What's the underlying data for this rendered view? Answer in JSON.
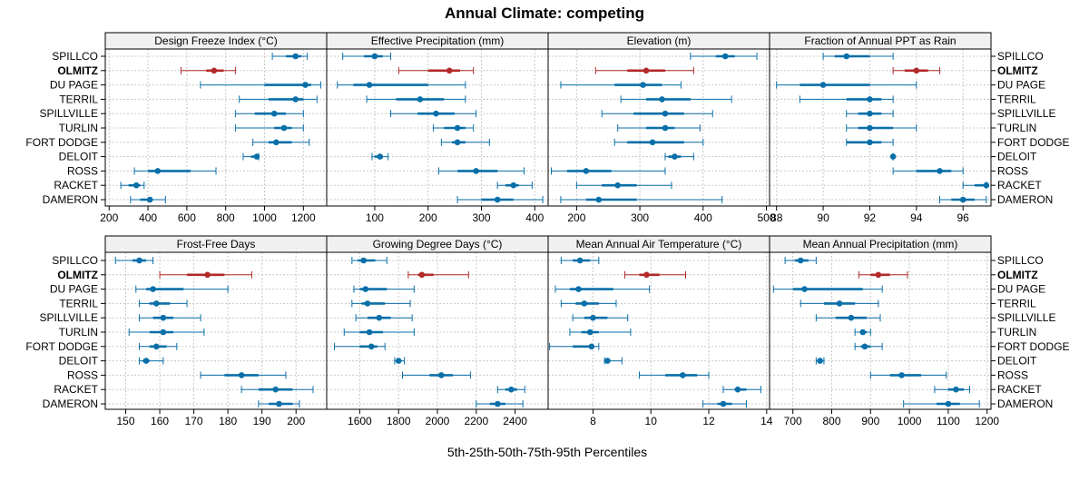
{
  "title": "Annual Climate: competing",
  "xlabel": "5th-25th-50th-75th-95th Percentiles",
  "rows": [
    "SPILLCO",
    "OLMITZ",
    "DU PAGE",
    "TERRIL",
    "SPILLVILLE",
    "TURLIN",
    "FORT DODGE",
    "DELOIT",
    "ROSS",
    "RACKET",
    "DAMERON"
  ],
  "highlight": "OLMITZ",
  "colors": {
    "normal": "#0a6fa8",
    "highlight": "#b22a2a",
    "grid": "#c8c8c8",
    "strip": "#f0f0f0",
    "frame": "#000000"
  },
  "chart_data": [
    {
      "type": "percentile-dotplot",
      "title": "Design Freeze Index (°C)",
      "xlim": [
        180,
        1320
      ],
      "ticks": [
        200,
        400,
        600,
        800,
        1000,
        1200
      ],
      "tick_labels": [
        "200",
        "400",
        "600",
        "800",
        "1000",
        "1200"
      ],
      "series": [
        {
          "name": "SPILLCO",
          "p5": 1040,
          "p25": 1110,
          "p50": 1160,
          "p75": 1190,
          "p95": 1220
        },
        {
          "name": "OLMITZ",
          "p5": 570,
          "p25": 700,
          "p50": 740,
          "p75": 790,
          "p95": 850
        },
        {
          "name": "DU PAGE",
          "p5": 670,
          "p25": 1000,
          "p50": 1210,
          "p75": 1240,
          "p95": 1290
        },
        {
          "name": "TERRIL",
          "p5": 870,
          "p25": 1020,
          "p50": 1160,
          "p75": 1200,
          "p95": 1270
        },
        {
          "name": "SPILLVILLE",
          "p5": 850,
          "p25": 950,
          "p50": 1050,
          "p75": 1110,
          "p95": 1200
        },
        {
          "name": "TURLIN",
          "p5": 850,
          "p25": 1050,
          "p50": 1100,
          "p75": 1140,
          "p95": 1200
        },
        {
          "name": "FORT DODGE",
          "p5": 940,
          "p25": 1020,
          "p50": 1060,
          "p75": 1140,
          "p95": 1230
        },
        {
          "name": "DELOIT",
          "p5": 890,
          "p25": 930,
          "p50": 960,
          "p75": 965,
          "p95": 970
        },
        {
          "name": "ROSS",
          "p5": 330,
          "p25": 400,
          "p50": 450,
          "p75": 620,
          "p95": 750
        },
        {
          "name": "RACKET",
          "p5": 260,
          "p25": 300,
          "p50": 340,
          "p75": 360,
          "p95": 380
        },
        {
          "name": "DAMERON",
          "p5": 310,
          "p25": 360,
          "p50": 410,
          "p75": 420,
          "p95": 490
        }
      ]
    },
    {
      "type": "percentile-dotplot",
      "title": "Effective Precipitation (mm)",
      "xlim": [
        10,
        425
      ],
      "ticks": [
        100,
        200,
        300,
        400
      ],
      "tick_labels": [
        "100",
        "200",
        "300",
        "400"
      ],
      "series": [
        {
          "name": "SPILLCO",
          "p5": 40,
          "p25": 80,
          "p50": 100,
          "p75": 115,
          "p95": 130
        },
        {
          "name": "OLMITZ",
          "p5": 145,
          "p25": 200,
          "p50": 240,
          "p75": 260,
          "p95": 285
        },
        {
          "name": "DU PAGE",
          "p5": 30,
          "p25": 60,
          "p50": 90,
          "p75": 200,
          "p95": 270
        },
        {
          "name": "TERRIL",
          "p5": 85,
          "p25": 140,
          "p50": 185,
          "p75": 230,
          "p95": 270
        },
        {
          "name": "SPILLVILLE",
          "p5": 130,
          "p25": 180,
          "p50": 215,
          "p75": 250,
          "p95": 290
        },
        {
          "name": "TURLIN",
          "p5": 210,
          "p25": 230,
          "p50": 255,
          "p75": 270,
          "p95": 285
        },
        {
          "name": "FORT DODGE",
          "p5": 225,
          "p25": 245,
          "p50": 255,
          "p75": 270,
          "p95": 315
        },
        {
          "name": "DELOIT",
          "p5": 95,
          "p25": 100,
          "p50": 110,
          "p75": 115,
          "p95": 125
        },
        {
          "name": "ROSS",
          "p5": 220,
          "p25": 255,
          "p50": 290,
          "p75": 330,
          "p95": 380
        },
        {
          "name": "RACKET",
          "p5": 330,
          "p25": 345,
          "p50": 360,
          "p75": 370,
          "p95": 395
        },
        {
          "name": "DAMERON",
          "p5": 255,
          "p25": 300,
          "p50": 330,
          "p75": 360,
          "p95": 415
        }
      ]
    },
    {
      "type": "percentile-dotplot",
      "title": "Elevation (m)",
      "xlim": [
        155,
        505
      ],
      "ticks": [
        200,
        300,
        400,
        500
      ],
      "tick_labels": [
        "200",
        "300",
        "400",
        "500"
      ],
      "series": [
        {
          "name": "SPILLCO",
          "p5": 380,
          "p25": 420,
          "p50": 435,
          "p75": 450,
          "p95": 485
        },
        {
          "name": "OLMITZ",
          "p5": 230,
          "p25": 280,
          "p50": 310,
          "p75": 340,
          "p95": 385
        },
        {
          "name": "DU PAGE",
          "p5": 175,
          "p25": 260,
          "p50": 305,
          "p75": 335,
          "p95": 365
        },
        {
          "name": "TERRIL",
          "p5": 270,
          "p25": 310,
          "p50": 335,
          "p75": 380,
          "p95": 445
        },
        {
          "name": "SPILLVILLE",
          "p5": 240,
          "p25": 290,
          "p50": 340,
          "p75": 370,
          "p95": 415
        },
        {
          "name": "TURLIN",
          "p5": 265,
          "p25": 310,
          "p50": 340,
          "p75": 355,
          "p95": 395
        },
        {
          "name": "FORT DODGE",
          "p5": 260,
          "p25": 280,
          "p50": 320,
          "p75": 370,
          "p95": 400
        },
        {
          "name": "DELOIT",
          "p5": 340,
          "p25": 345,
          "p50": 355,
          "p75": 365,
          "p95": 385
        },
        {
          "name": "ROSS",
          "p5": 160,
          "p25": 185,
          "p50": 215,
          "p75": 255,
          "p95": 340
        },
        {
          "name": "RACKET",
          "p5": 200,
          "p25": 240,
          "p50": 265,
          "p75": 295,
          "p95": 350
        },
        {
          "name": "DAMERON",
          "p5": 175,
          "p25": 215,
          "p50": 235,
          "p75": 295,
          "p95": 430
        }
      ]
    },
    {
      "type": "percentile-dotplot",
      "title": "Fraction of Annual PPT as Rain",
      "xlim": [
        87.7,
        97.2
      ],
      "ticks": [
        88,
        90,
        92,
        94,
        96
      ],
      "tick_labels": [
        "88",
        "90",
        "92",
        "94",
        "96"
      ],
      "series": [
        {
          "name": "SPILLCO",
          "p5": 90,
          "p25": 90.5,
          "p50": 91,
          "p75": 92,
          "p95": 93
        },
        {
          "name": "OLMITZ",
          "p5": 93,
          "p25": 93.5,
          "p50": 94,
          "p75": 94.5,
          "p95": 95
        },
        {
          "name": "DU PAGE",
          "p5": 88,
          "p25": 89,
          "p50": 90,
          "p75": 92,
          "p95": 94
        },
        {
          "name": "TERRIL",
          "p5": 89,
          "p25": 91,
          "p50": 92,
          "p75": 92.5,
          "p95": 93
        },
        {
          "name": "SPILLVILLE",
          "p5": 91,
          "p25": 91.5,
          "p50": 92,
          "p75": 92.5,
          "p95": 93
        },
        {
          "name": "TURLIN",
          "p5": 91,
          "p25": 91.5,
          "p50": 92,
          "p75": 93,
          "p95": 94
        },
        {
          "name": "FORT DODGE",
          "p5": 91,
          "p25": 91,
          "p50": 92,
          "p75": 92.5,
          "p95": 93
        },
        {
          "name": "DELOIT",
          "p5": 93,
          "p25": 93,
          "p50": 93,
          "p75": 93,
          "p95": 93
        },
        {
          "name": "ROSS",
          "p5": 93,
          "p25": 94,
          "p50": 95,
          "p75": 95.5,
          "p95": 96
        },
        {
          "name": "RACKET",
          "p5": 96,
          "p25": 96.5,
          "p50": 97,
          "p75": 97,
          "p95": 97
        },
        {
          "name": "DAMERON",
          "p5": 95,
          "p25": 95.5,
          "p50": 96,
          "p75": 96.5,
          "p95": 97
        }
      ]
    },
    {
      "type": "percentile-dotplot",
      "title": "Frost-Free Days",
      "xlim": [
        144,
        209
      ],
      "ticks": [
        150,
        160,
        170,
        180,
        190,
        200
      ],
      "tick_labels": [
        "150",
        "160",
        "170",
        "180",
        "190",
        "200"
      ],
      "series": [
        {
          "name": "SPILLCO",
          "p5": 147,
          "p25": 152,
          "p50": 154,
          "p75": 156,
          "p95": 158
        },
        {
          "name": "OLMITZ",
          "p5": 160,
          "p25": 168,
          "p50": 174,
          "p75": 179,
          "p95": 187
        },
        {
          "name": "DU PAGE",
          "p5": 153,
          "p25": 156,
          "p50": 158,
          "p75": 167,
          "p95": 180
        },
        {
          "name": "TERRIL",
          "p5": 154,
          "p25": 157,
          "p50": 159,
          "p75": 163,
          "p95": 168
        },
        {
          "name": "SPILLVILLE",
          "p5": 154,
          "p25": 158,
          "p50": 161,
          "p75": 164,
          "p95": 172
        },
        {
          "name": "TURLIN",
          "p5": 151,
          "p25": 157,
          "p50": 161,
          "p75": 164,
          "p95": 173
        },
        {
          "name": "FORT DODGE",
          "p5": 154,
          "p25": 157,
          "p50": 159,
          "p75": 162,
          "p95": 165
        },
        {
          "name": "DELOIT",
          "p5": 154,
          "p25": 155,
          "p50": 156,
          "p75": 157,
          "p95": 161
        },
        {
          "name": "ROSS",
          "p5": 172,
          "p25": 179,
          "p50": 184,
          "p75": 189,
          "p95": 197
        },
        {
          "name": "RACKET",
          "p5": 184,
          "p25": 189,
          "p50": 194,
          "p75": 199,
          "p95": 205
        },
        {
          "name": "DAMERON",
          "p5": 189,
          "p25": 192,
          "p50": 195,
          "p75": 199,
          "p95": 201
        }
      ]
    },
    {
      "type": "percentile-dotplot",
      "title": "Growing Degree Days (°C)",
      "xlim": [
        1430,
        2570
      ],
      "ticks": [
        1600,
        1800,
        2000,
        2200,
        2400
      ],
      "tick_labels": [
        "1600",
        "1800",
        "2000",
        "2200",
        "2400"
      ],
      "series": [
        {
          "name": "SPILLCO",
          "p5": 1560,
          "p25": 1590,
          "p50": 1620,
          "p75": 1680,
          "p95": 1740
        },
        {
          "name": "OLMITZ",
          "p5": 1850,
          "p25": 1900,
          "p50": 1920,
          "p75": 1980,
          "p95": 2160
        },
        {
          "name": "DU PAGE",
          "p5": 1570,
          "p25": 1600,
          "p50": 1630,
          "p75": 1740,
          "p95": 1880
        },
        {
          "name": "TERRIL",
          "p5": 1560,
          "p25": 1610,
          "p50": 1640,
          "p75": 1730,
          "p95": 1860
        },
        {
          "name": "SPILLVILLE",
          "p5": 1580,
          "p25": 1640,
          "p50": 1700,
          "p75": 1760,
          "p95": 1870
        },
        {
          "name": "TURLIN",
          "p5": 1520,
          "p25": 1600,
          "p50": 1650,
          "p75": 1720,
          "p95": 1880
        },
        {
          "name": "FORT DODGE",
          "p5": 1470,
          "p25": 1600,
          "p50": 1660,
          "p75": 1690,
          "p95": 1730
        },
        {
          "name": "DELOIT",
          "p5": 1780,
          "p25": 1790,
          "p50": 1800,
          "p75": 1815,
          "p95": 1830
        },
        {
          "name": "ROSS",
          "p5": 1820,
          "p25": 1960,
          "p50": 2020,
          "p75": 2080,
          "p95": 2170
        },
        {
          "name": "RACKET",
          "p5": 2310,
          "p25": 2350,
          "p50": 2380,
          "p75": 2410,
          "p95": 2450
        },
        {
          "name": "DAMERON",
          "p5": 2200,
          "p25": 2270,
          "p50": 2310,
          "p75": 2350,
          "p95": 2440
        }
      ]
    },
    {
      "type": "percentile-dotplot",
      "title": "Mean Annual Air Temperature (°C)",
      "xlim": [
        6.45,
        14.1
      ],
      "ticks": [
        8,
        10,
        12,
        14
      ],
      "tick_labels": [
        "8",
        "10",
        "12",
        "14"
      ],
      "series": [
        {
          "name": "SPILLCO",
          "p5": 6.9,
          "p25": 7.3,
          "p50": 7.55,
          "p75": 7.9,
          "p95": 8.2
        },
        {
          "name": "OLMITZ",
          "p5": 9.1,
          "p25": 9.6,
          "p50": 9.85,
          "p75": 10.3,
          "p95": 11.2
        },
        {
          "name": "DU PAGE",
          "p5": 6.7,
          "p25": 7.2,
          "p50": 7.5,
          "p75": 8.7,
          "p95": 9.95
        },
        {
          "name": "TERRIL",
          "p5": 6.9,
          "p25": 7.4,
          "p50": 7.7,
          "p75": 8.2,
          "p95": 8.8
        },
        {
          "name": "SPILLVILLE",
          "p5": 7.3,
          "p25": 7.7,
          "p50": 8.0,
          "p75": 8.5,
          "p95": 9.2
        },
        {
          "name": "TURLIN",
          "p5": 7.2,
          "p25": 7.6,
          "p50": 7.9,
          "p75": 8.2,
          "p95": 9.3
        },
        {
          "name": "FORT DODGE",
          "p5": 6.5,
          "p25": 7.3,
          "p50": 7.95,
          "p75": 8.05,
          "p95": 8.2
        },
        {
          "name": "DELOIT",
          "p5": 8.4,
          "p25": 8.45,
          "p50": 8.5,
          "p75": 8.6,
          "p95": 9.0
        },
        {
          "name": "ROSS",
          "p5": 9.6,
          "p25": 10.5,
          "p50": 11.1,
          "p75": 11.6,
          "p95": 12.0
        },
        {
          "name": "RACKET",
          "p5": 12.5,
          "p25": 12.9,
          "p50": 13.0,
          "p75": 13.3,
          "p95": 13.8
        },
        {
          "name": "DAMERON",
          "p5": 11.8,
          "p25": 12.3,
          "p50": 12.5,
          "p75": 12.8,
          "p95": 13.3
        }
      ]
    },
    {
      "type": "percentile-dotplot",
      "title": "Mean Annual Precipitation (mm)",
      "xlim": [
        640,
        1210
      ],
      "ticks": [
        700,
        800,
        900,
        1000,
        1100,
        1200
      ],
      "tick_labels": [
        "700",
        "800",
        "900",
        "1000",
        "1100",
        "1200"
      ],
      "series": [
        {
          "name": "SPILLCO",
          "p5": 680,
          "p25": 705,
          "p50": 720,
          "p75": 740,
          "p95": 760
        },
        {
          "name": "OLMITZ",
          "p5": 870,
          "p25": 900,
          "p50": 920,
          "p75": 950,
          "p95": 995
        },
        {
          "name": "DU PAGE",
          "p5": 650,
          "p25": 700,
          "p50": 730,
          "p75": 880,
          "p95": 930
        },
        {
          "name": "TERRIL",
          "p5": 720,
          "p25": 780,
          "p50": 820,
          "p75": 860,
          "p95": 920
        },
        {
          "name": "SPILLVILLE",
          "p5": 760,
          "p25": 810,
          "p50": 850,
          "p75": 890,
          "p95": 925
        },
        {
          "name": "TURLIN",
          "p5": 860,
          "p25": 875,
          "p50": 880,
          "p75": 890,
          "p95": 900
        },
        {
          "name": "FORT DODGE",
          "p5": 860,
          "p25": 875,
          "p50": 885,
          "p75": 900,
          "p95": 930
        },
        {
          "name": "DELOIT",
          "p5": 760,
          "p25": 765,
          "p50": 770,
          "p75": 775,
          "p95": 780
        },
        {
          "name": "ROSS",
          "p5": 900,
          "p25": 950,
          "p50": 980,
          "p75": 1030,
          "p95": 1095
        },
        {
          "name": "RACKET",
          "p5": 1065,
          "p25": 1100,
          "p50": 1120,
          "p75": 1140,
          "p95": 1155
        },
        {
          "name": "DAMERON",
          "p5": 985,
          "p25": 1070,
          "p50": 1100,
          "p75": 1130,
          "p95": 1180
        }
      ]
    }
  ]
}
